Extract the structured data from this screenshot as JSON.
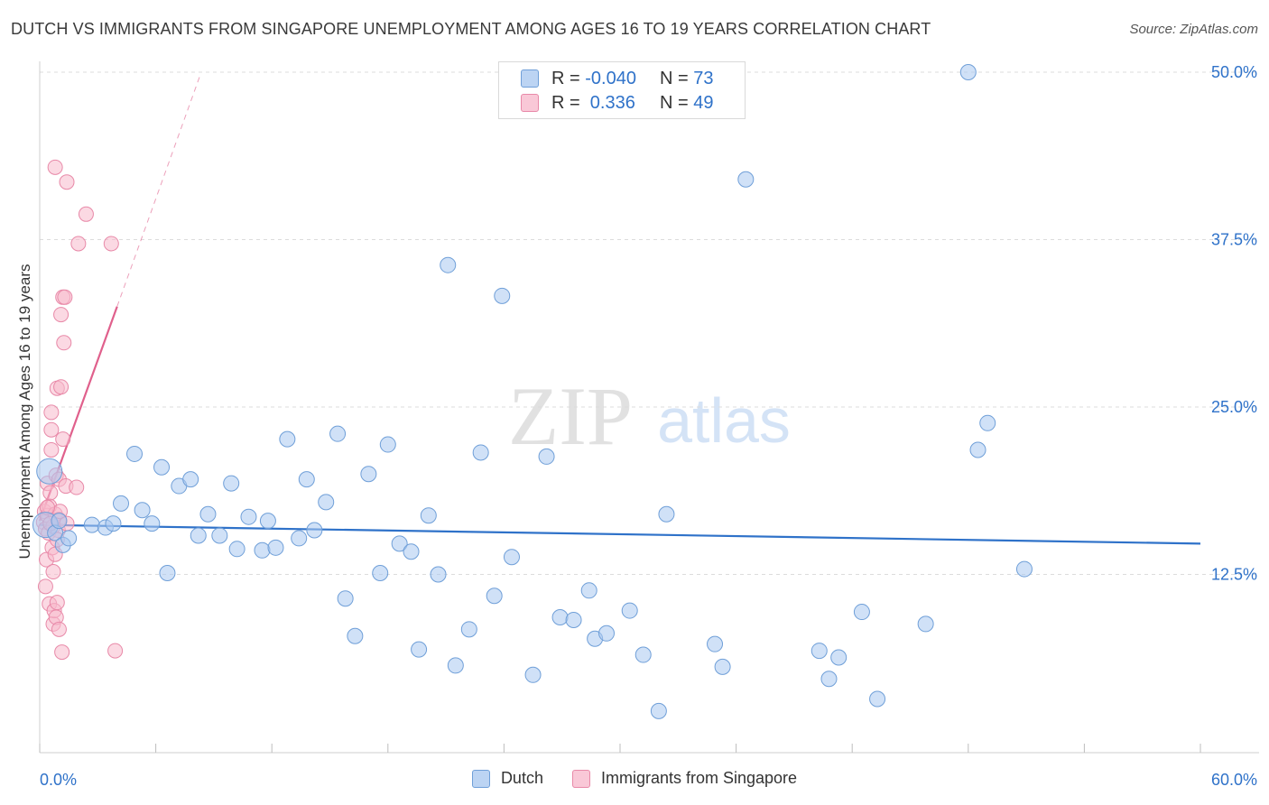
{
  "title": "DUTCH VS IMMIGRANTS FROM SINGAPORE UNEMPLOYMENT AMONG AGES 16 TO 19 YEARS CORRELATION CHART",
  "source": "Source: ZipAtlas.com",
  "watermark": {
    "zip": "ZIP",
    "atlas": "atlas"
  },
  "colors": {
    "dutch_fill": "#a9c8f0",
    "dutch_stroke": "#6f9fd8",
    "dutch_line": "#2f72c9",
    "singapore_fill": "#f7b9cc",
    "singapore_stroke": "#e889a8",
    "singapore_line": "#e0608c",
    "tick_label": "#2f72c9"
  },
  "legend": {
    "rows": [
      {
        "name": "Dutch",
        "r_label": "R = ",
        "r_value": "-0.040",
        "n_label": "N = ",
        "n_value": "73"
      },
      {
        "name": "Immigrants from Singapore",
        "r_label": "R = ",
        "r_value": " 0.336",
        "n_label": "N = ",
        "n_value": "49"
      }
    ]
  },
  "chart_data": {
    "type": "scatter",
    "title": "DUTCH VS IMMIGRANTS FROM SINGAPORE UNEMPLOYMENT AMONG AGES 16 TO 19 YEARS CORRELATION CHART",
    "xlabel": "",
    "ylabel": "Unemployment Among Ages 16 to 19 years",
    "xlim": [
      0,
      60
    ],
    "ylim": [
      0,
      50
    ],
    "x_tick_labels": [
      "0.0%",
      "60.0%"
    ],
    "y_ticks": [
      12.5,
      25.0,
      37.5,
      50.0
    ],
    "y_tick_labels": [
      "12.5%",
      "25.0%",
      "37.5%",
      "50.0%"
    ],
    "grid": "horizontal dashed",
    "legend_position": "top-center",
    "series": [
      {
        "name": "Dutch",
        "points": [
          [
            0.3,
            16.2
          ],
          [
            0.5,
            20.2
          ],
          [
            0.8,
            15.6
          ],
          [
            1.2,
            14.7
          ],
          [
            1.5,
            15.2
          ],
          [
            2.7,
            16.2
          ],
          [
            3.4,
            16.0
          ],
          [
            3.8,
            16.3
          ],
          [
            4.2,
            17.8
          ],
          [
            4.9,
            21.5
          ],
          [
            5.3,
            17.3
          ],
          [
            5.8,
            16.3
          ],
          [
            6.3,
            20.5
          ],
          [
            6.6,
            12.6
          ],
          [
            7.2,
            19.1
          ],
          [
            7.8,
            19.6
          ],
          [
            8.2,
            15.4
          ],
          [
            8.7,
            17.0
          ],
          [
            9.3,
            15.4
          ],
          [
            9.9,
            19.3
          ],
          [
            10.2,
            14.4
          ],
          [
            10.8,
            16.8
          ],
          [
            11.5,
            14.3
          ],
          [
            11.8,
            16.5
          ],
          [
            12.2,
            14.5
          ],
          [
            12.8,
            22.6
          ],
          [
            13.4,
            15.2
          ],
          [
            13.8,
            19.6
          ],
          [
            14.2,
            15.8
          ],
          [
            14.8,
            17.9
          ],
          [
            15.4,
            23.0
          ],
          [
            15.8,
            10.7
          ],
          [
            16.3,
            7.9
          ],
          [
            17.0,
            20.0
          ],
          [
            17.6,
            12.6
          ],
          [
            18.0,
            22.2
          ],
          [
            18.6,
            14.8
          ],
          [
            19.2,
            14.2
          ],
          [
            19.6,
            6.9
          ],
          [
            20.1,
            16.9
          ],
          [
            20.6,
            12.5
          ],
          [
            21.1,
            35.6
          ],
          [
            21.5,
            5.7
          ],
          [
            22.2,
            8.4
          ],
          [
            22.8,
            21.6
          ],
          [
            23.5,
            10.9
          ],
          [
            23.9,
            33.3
          ],
          [
            24.4,
            13.8
          ],
          [
            25.5,
            5.0
          ],
          [
            26.2,
            21.3
          ],
          [
            26.9,
            9.3
          ],
          [
            27.6,
            9.1
          ],
          [
            28.4,
            11.3
          ],
          [
            28.7,
            7.7
          ],
          [
            29.3,
            8.1
          ],
          [
            30.5,
            9.8
          ],
          [
            31.2,
            6.5
          ],
          [
            32.0,
            2.3
          ],
          [
            32.4,
            17.0
          ],
          [
            34.9,
            7.3
          ],
          [
            35.3,
            5.6
          ],
          [
            36.5,
            42.0
          ],
          [
            40.3,
            6.8
          ],
          [
            40.8,
            4.7
          ],
          [
            41.3,
            6.3
          ],
          [
            42.5,
            9.7
          ],
          [
            43.3,
            3.2
          ],
          [
            45.8,
            8.8
          ],
          [
            48.0,
            50.0
          ],
          [
            48.5,
            21.8
          ],
          [
            49.0,
            23.8
          ],
          [
            50.9,
            12.9
          ],
          [
            1.0,
            16.5
          ]
        ],
        "trend": {
          "x": [
            0,
            60
          ],
          "y": [
            16.2,
            14.8
          ]
        }
      },
      {
        "name": "Immigrants from Singapore",
        "points": [
          [
            0.2,
            16.4
          ],
          [
            0.25,
            17.2
          ],
          [
            0.3,
            15.9
          ],
          [
            0.3,
            11.6
          ],
          [
            0.35,
            13.6
          ],
          [
            0.4,
            16.9
          ],
          [
            0.4,
            19.3
          ],
          [
            0.45,
            15.6
          ],
          [
            0.5,
            17.6
          ],
          [
            0.5,
            10.3
          ],
          [
            0.55,
            18.6
          ],
          [
            0.6,
            21.8
          ],
          [
            0.6,
            24.6
          ],
          [
            0.6,
            23.3
          ],
          [
            0.65,
            14.5
          ],
          [
            0.7,
            16.1
          ],
          [
            0.7,
            8.8
          ],
          [
            0.75,
            9.8
          ],
          [
            0.8,
            17.0
          ],
          [
            0.8,
            14.0
          ],
          [
            0.85,
            19.9
          ],
          [
            0.85,
            9.3
          ],
          [
            0.9,
            26.4
          ],
          [
            0.9,
            10.4
          ],
          [
            0.95,
            15.8
          ],
          [
            1.0,
            19.6
          ],
          [
            1.0,
            16.6
          ],
          [
            1.0,
            8.4
          ],
          [
            1.05,
            17.2
          ],
          [
            1.1,
            26.5
          ],
          [
            1.1,
            31.9
          ],
          [
            1.15,
            6.7
          ],
          [
            1.2,
            33.2
          ],
          [
            1.2,
            22.6
          ],
          [
            1.25,
            29.8
          ],
          [
            1.3,
            33.2
          ],
          [
            1.35,
            19.1
          ],
          [
            1.4,
            16.3
          ],
          [
            0.8,
            42.9
          ],
          [
            1.4,
            41.8
          ],
          [
            1.9,
            19.0
          ],
          [
            2.0,
            37.2
          ],
          [
            2.4,
            39.4
          ],
          [
            3.7,
            37.2
          ],
          [
            3.9,
            6.8
          ],
          [
            0.4,
            17.5
          ],
          [
            0.55,
            16.3
          ],
          [
            0.7,
            12.7
          ],
          [
            0.9,
            15.1
          ]
        ],
        "trend": {
          "x": [
            0,
            4.0
          ],
          "y": [
            16.5,
            32.5
          ]
        },
        "trend_extension": {
          "x": [
            4.0,
            8.3
          ],
          "y": [
            32.5,
            49.8
          ]
        }
      }
    ]
  }
}
